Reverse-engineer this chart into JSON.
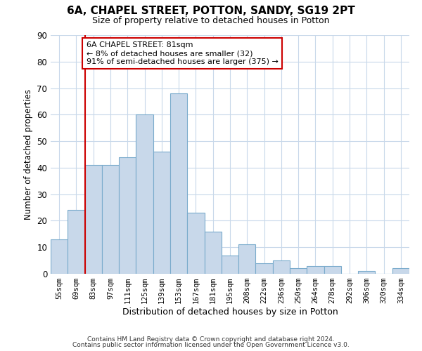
{
  "title": "6A, CHAPEL STREET, POTTON, SANDY, SG19 2PT",
  "subtitle": "Size of property relative to detached houses in Potton",
  "xlabel": "Distribution of detached houses by size in Potton",
  "ylabel": "Number of detached properties",
  "bin_labels": [
    "55sqm",
    "69sqm",
    "83sqm",
    "97sqm",
    "111sqm",
    "125sqm",
    "139sqm",
    "153sqm",
    "167sqm",
    "181sqm",
    "195sqm",
    "208sqm",
    "222sqm",
    "236sqm",
    "250sqm",
    "264sqm",
    "278sqm",
    "292sqm",
    "306sqm",
    "320sqm",
    "334sqm"
  ],
  "bar_values": [
    13,
    24,
    41,
    41,
    44,
    60,
    46,
    68,
    23,
    16,
    7,
    11,
    4,
    5,
    2,
    3,
    3,
    0,
    1,
    0,
    2
  ],
  "bar_color": "#c8d8ea",
  "bar_edge_color": "#7aabcc",
  "vline_color": "#cc0000",
  "ylim": [
    0,
    90
  ],
  "yticks": [
    0,
    10,
    20,
    30,
    40,
    50,
    60,
    70,
    80,
    90
  ],
  "annotation_line1": "6A CHAPEL STREET: 81sqm",
  "annotation_line2": "← 8% of detached houses are smaller (32)",
  "annotation_line3": "91% of semi-detached houses are larger (375) →",
  "annotation_box_color": "#ffffff",
  "annotation_box_edge": "#cc0000",
  "footer1": "Contains HM Land Registry data © Crown copyright and database right 2024.",
  "footer2": "Contains public sector information licensed under the Open Government Licence v3.0.",
  "background_color": "#ffffff",
  "grid_color": "#c8d8ea"
}
